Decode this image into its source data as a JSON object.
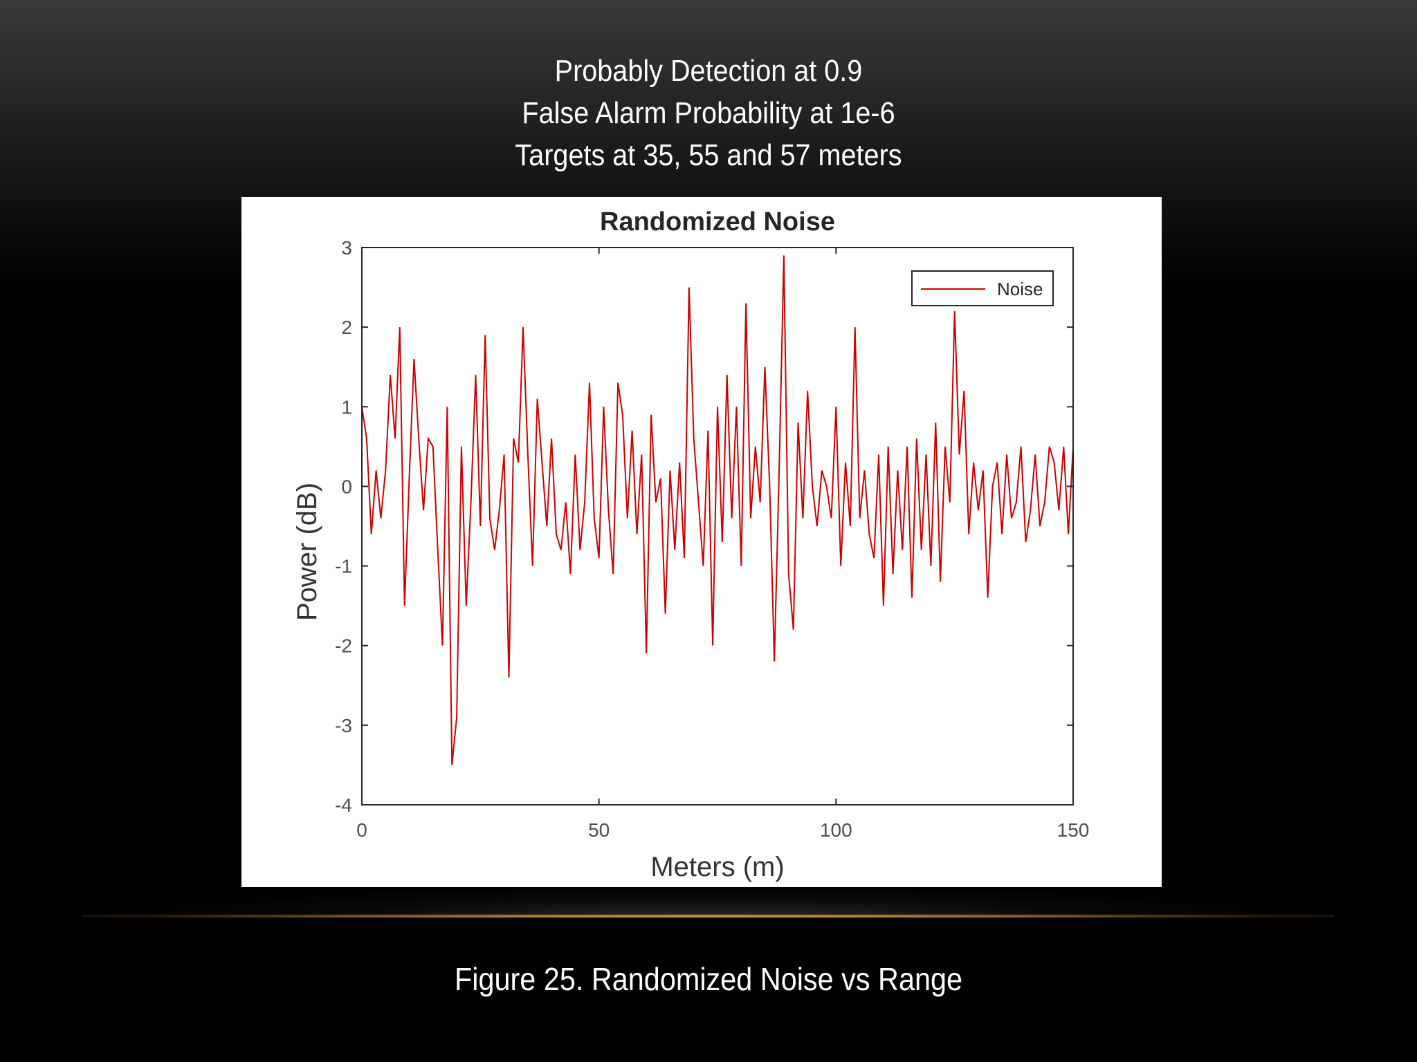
{
  "slide": {
    "header_lines": [
      "Probably Detection at 0.9",
      "False Alarm Probability at 1e-6",
      "Targets at 35, 55 and 57 meters"
    ],
    "caption": "Figure 25. Randomized Noise vs Range"
  },
  "colors": {
    "series": "#cc0000",
    "axis": "#262626",
    "tick_text": "#4d4d4d",
    "panel": "#ffffff"
  },
  "chart_data": {
    "type": "line",
    "title": "Randomized Noise",
    "xlabel": "Meters (m)",
    "ylabel": "Power (dB)",
    "xlim": [
      0,
      150
    ],
    "ylim": [
      -4,
      3
    ],
    "xticks": [
      0,
      50,
      100,
      150
    ],
    "yticks": [
      3,
      2,
      1,
      0,
      -1,
      -2,
      -3,
      -4
    ],
    "grid": false,
    "legend_position": "top-right",
    "series": [
      {
        "name": "Noise",
        "x": [
          0,
          1,
          2,
          3,
          4,
          5,
          6,
          7,
          8,
          9,
          10,
          11,
          12,
          13,
          14,
          15,
          16,
          17,
          18,
          19,
          20,
          21,
          22,
          23,
          24,
          25,
          26,
          27,
          28,
          29,
          30,
          31,
          32,
          33,
          34,
          35,
          36,
          37,
          38,
          39,
          40,
          41,
          42,
          43,
          44,
          45,
          46,
          47,
          48,
          49,
          50,
          51,
          52,
          53,
          54,
          55,
          56,
          57,
          58,
          59,
          60,
          61,
          62,
          63,
          64,
          65,
          66,
          67,
          68,
          69,
          70,
          71,
          72,
          73,
          74,
          75,
          76,
          77,
          78,
          79,
          80,
          81,
          82,
          83,
          84,
          85,
          86,
          87,
          88,
          89,
          90,
          91,
          92,
          93,
          94,
          95,
          96,
          97,
          98,
          99,
          100,
          101,
          102,
          103,
          104,
          105,
          106,
          107,
          108,
          109,
          110,
          111,
          112,
          113,
          114,
          115,
          116,
          117,
          118,
          119,
          120,
          121,
          122,
          123,
          124,
          125,
          126,
          127,
          128,
          129,
          130,
          131,
          132,
          133,
          134,
          135,
          136,
          137,
          138,
          139,
          140,
          141,
          142,
          143,
          144,
          145,
          146,
          147,
          148,
          149,
          150
        ],
        "values": [
          1.0,
          0.6,
          -0.6,
          0.2,
          -0.4,
          0.2,
          1.4,
          0.6,
          2.0,
          -1.5,
          0.1,
          1.6,
          0.6,
          -0.3,
          0.6,
          0.5,
          -0.8,
          -2.0,
          1.0,
          -3.5,
          -2.9,
          0.5,
          -1.5,
          -0.2,
          1.4,
          -0.5,
          1.9,
          -0.4,
          -0.8,
          -0.3,
          0.4,
          -2.4,
          0.6,
          0.3,
          2.0,
          0.4,
          -1.0,
          1.1,
          0.3,
          -0.5,
          0.6,
          -0.6,
          -0.8,
          -0.2,
          -1.1,
          0.4,
          -0.8,
          -0.2,
          1.3,
          -0.4,
          -0.9,
          1.0,
          -0.3,
          -1.1,
          1.3,
          0.9,
          -0.4,
          0.7,
          -0.6,
          0.4,
          -2.1,
          0.9,
          -0.2,
          0.1,
          -1.6,
          0.2,
          -0.8,
          0.3,
          -0.9,
          2.5,
          0.6,
          -0.2,
          -1.0,
          0.7,
          -2.0,
          1.0,
          -0.7,
          1.4,
          -0.4,
          1.0,
          -1.0,
          2.3,
          -0.4,
          0.5,
          -0.2,
          1.5,
          0.0,
          -2.2,
          0.2,
          2.9,
          -1.1,
          -1.8,
          0.8,
          -0.4,
          1.2,
          0.0,
          -0.5,
          0.2,
          0.0,
          -0.4,
          1.0,
          -1.0,
          0.3,
          -0.5,
          2.0,
          -0.4,
          0.2,
          -0.6,
          -0.9,
          0.4,
          -1.5,
          0.5,
          -1.1,
          0.2,
          -0.8,
          0.5,
          -1.4,
          0.6,
          -0.8,
          0.4,
          -1.0,
          0.8,
          -1.2,
          0.5,
          -0.2,
          2.2,
          0.4,
          1.2,
          -0.6,
          0.3,
          -0.3,
          0.2,
          -1.4,
          0.0,
          0.3,
          -0.6,
          0.4,
          -0.4,
          -0.2,
          0.5,
          -0.7,
          -0.3,
          0.4,
          -0.5,
          -0.2,
          0.5,
          0.3,
          -0.3,
          0.5,
          -0.6,
          0.5
        ]
      }
    ]
  }
}
